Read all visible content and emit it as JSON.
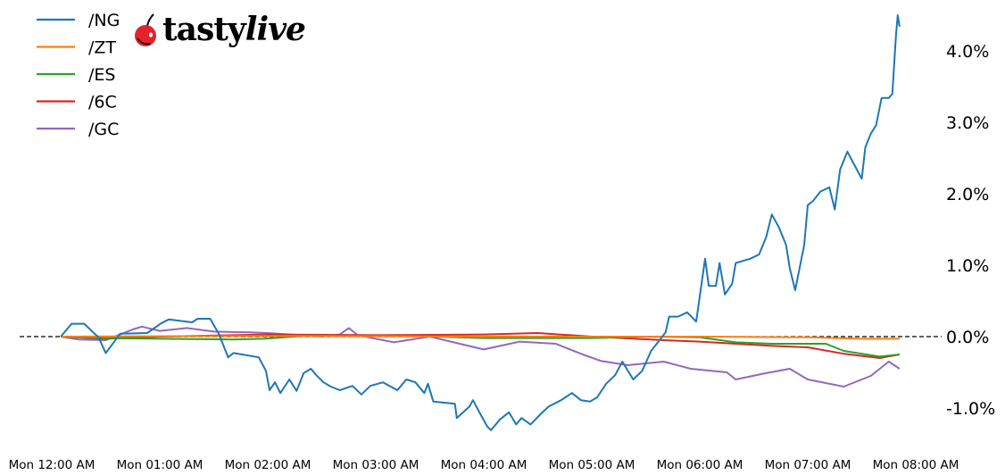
{
  "brand": {
    "logo_text": "tastylive"
  },
  "chart_data": {
    "type": "line",
    "title": "",
    "xlabel": "",
    "ylabel": "",
    "x_unit": "minutes after Mon 12:00 AM",
    "xlim": [
      0,
      480
    ],
    "ylim": [
      -1.5,
      4.6
    ],
    "x_ticks": [
      "Mon 12:00 AM",
      "Mon 01:00 AM",
      "Mon 02:00 AM",
      "Mon 03:00 AM",
      "Mon 04:00 AM",
      "Mon 05:00 AM",
      "Mon 06:00 AM",
      "Mon 07:00 AM",
      "Mon 08:00 AM"
    ],
    "y_ticks": [
      {
        "v": 4,
        "label": "4.0%"
      },
      {
        "v": 3,
        "label": "3.0%"
      },
      {
        "v": 2,
        "label": "2.0%"
      },
      {
        "v": 1,
        "label": "1.0%"
      },
      {
        "v": 0,
        "label": "0.0%"
      },
      {
        "v": -1,
        "label": "-1.0%"
      }
    ],
    "y_axis_side": "right",
    "grid": false,
    "reference_line": {
      "y": 0,
      "style": "dashed",
      "color": "#000000"
    },
    "legend_position": "top-left",
    "series": [
      {
        "name": "/NG",
        "color": "#1f77b4",
        "points": [
          [
            5,
            0
          ],
          [
            11,
            0.18
          ],
          [
            18,
            0.18
          ],
          [
            26,
            -0.01
          ],
          [
            30,
            -0.23
          ],
          [
            38,
            0.04
          ],
          [
            53,
            0.05
          ],
          [
            61,
            0.19
          ],
          [
            65,
            0.24
          ],
          [
            78,
            0.2
          ],
          [
            81,
            0.25
          ],
          [
            88,
            0.25
          ],
          [
            93,
            0.03
          ],
          [
            98,
            -0.29
          ],
          [
            101,
            -0.23
          ],
          [
            115,
            -0.29
          ],
          [
            119,
            -0.48
          ],
          [
            121,
            -0.75
          ],
          [
            124,
            -0.64
          ],
          [
            127,
            -0.79
          ],
          [
            132,
            -0.6
          ],
          [
            136,
            -0.76
          ],
          [
            140,
            -0.51
          ],
          [
            144,
            -0.45
          ],
          [
            147,
            -0.54
          ],
          [
            151,
            -0.64
          ],
          [
            155,
            -0.7
          ],
          [
            160,
            -0.75
          ],
          [
            167,
            -0.69
          ],
          [
            172,
            -0.81
          ],
          [
            177,
            -0.69
          ],
          [
            184,
            -0.64
          ],
          [
            192,
            -0.75
          ],
          [
            197,
            -0.6
          ],
          [
            202,
            -0.64
          ],
          [
            207,
            -0.79
          ],
          [
            209,
            -0.66
          ],
          [
            212,
            -0.91
          ],
          [
            224,
            -0.94
          ],
          [
            225,
            -1.14
          ],
          [
            232,
            -0.98
          ],
          [
            234,
            -0.89
          ],
          [
            238,
            -1.08
          ],
          [
            242,
            -1.26
          ],
          [
            244,
            -1.31
          ],
          [
            249,
            -1.16
          ],
          [
            254,
            -1.06
          ],
          [
            258,
            -1.23
          ],
          [
            261,
            -1.14
          ],
          [
            266,
            -1.23
          ],
          [
            271,
            -1.1
          ],
          [
            276,
            -0.98
          ],
          [
            283,
            -0.89
          ],
          [
            289,
            -0.79
          ],
          [
            294,
            -0.89
          ],
          [
            299,
            -0.91
          ],
          [
            303,
            -0.85
          ],
          [
            308,
            -0.66
          ],
          [
            313,
            -0.54
          ],
          [
            317,
            -0.35
          ],
          [
            323,
            -0.6
          ],
          [
            328,
            -0.48
          ],
          [
            333,
            -0.2
          ],
          [
            338,
            -0.04
          ],
          [
            341,
            0.06
          ],
          [
            343,
            0.28
          ],
          [
            348,
            0.28
          ],
          [
            353,
            0.34
          ],
          [
            358,
            0.21
          ],
          [
            363,
            1.09
          ],
          [
            365,
            0.71
          ],
          [
            369,
            0.71
          ],
          [
            371,
            1.03
          ],
          [
            374,
            0.59
          ],
          [
            378,
            0.74
          ],
          [
            380,
            1.03
          ],
          [
            388,
            1.09
          ],
          [
            393,
            1.15
          ],
          [
            397,
            1.4
          ],
          [
            400,
            1.71
          ],
          [
            404,
            1.53
          ],
          [
            408,
            1.28
          ],
          [
            410,
            0.96
          ],
          [
            413,
            0.65
          ],
          [
            418,
            1.28
          ],
          [
            420,
            1.84
          ],
          [
            423,
            1.9
          ],
          [
            427,
            2.03
          ],
          [
            432,
            2.09
          ],
          [
            435,
            1.78
          ],
          [
            438,
            2.34
          ],
          [
            442,
            2.59
          ],
          [
            446,
            2.4
          ],
          [
            450,
            2.21
          ],
          [
            452,
            2.65
          ],
          [
            455,
            2.84
          ],
          [
            458,
            2.96
          ],
          [
            461,
            3.34
          ],
          [
            465,
            3.34
          ],
          [
            467,
            3.4
          ],
          [
            469,
            4.21
          ],
          [
            470,
            4.5
          ],
          [
            471,
            4.34
          ]
        ]
      },
      {
        "name": "/ZT",
        "color": "#ff7f0e",
        "points": [
          [
            5,
            0
          ],
          [
            120,
            0.01
          ],
          [
            240,
            0
          ],
          [
            360,
            0
          ],
          [
            420,
            -0.01
          ],
          [
            450,
            -0.03
          ],
          [
            471,
            -0.03
          ]
        ]
      },
      {
        "name": "/ES",
        "color": "#2ca02c",
        "points": [
          [
            5,
            0
          ],
          [
            30,
            -0.02
          ],
          [
            60,
            -0.03
          ],
          [
            100,
            -0.04
          ],
          [
            118,
            -0.03
          ],
          [
            140,
            0.01
          ],
          [
            200,
            0.01
          ],
          [
            240,
            -0.02
          ],
          [
            300,
            -0.02
          ],
          [
            330,
            0
          ],
          [
            360,
            -0.01
          ],
          [
            380,
            -0.08
          ],
          [
            400,
            -0.1
          ],
          [
            430,
            -0.1
          ],
          [
            440,
            -0.2
          ],
          [
            460,
            -0.28
          ],
          [
            471,
            -0.25
          ]
        ]
      },
      {
        "name": "/6C",
        "color": "#d62728",
        "points": [
          [
            5,
            0
          ],
          [
            30,
            -0.03
          ],
          [
            60,
            0
          ],
          [
            120,
            0.03
          ],
          [
            180,
            0.02
          ],
          [
            240,
            0.03
          ],
          [
            270,
            0.05
          ],
          [
            300,
            0
          ],
          [
            340,
            -0.05
          ],
          [
            360,
            -0.07
          ],
          [
            400,
            -0.13
          ],
          [
            420,
            -0.15
          ],
          [
            440,
            -0.24
          ],
          [
            460,
            -0.3
          ],
          [
            471,
            -0.25
          ]
        ]
      },
      {
        "name": "/GC",
        "color": "#9467bd",
        "points": [
          [
            5,
            0
          ],
          [
            15,
            -0.04
          ],
          [
            30,
            -0.05
          ],
          [
            45,
            0.1
          ],
          [
            50,
            0.14
          ],
          [
            60,
            0.08
          ],
          [
            75,
            0.12
          ],
          [
            90,
            0.07
          ],
          [
            110,
            0.06
          ],
          [
            120,
            0.05
          ],
          [
            150,
            0
          ],
          [
            160,
            0.03
          ],
          [
            165,
            0.12
          ],
          [
            170,
            0.02
          ],
          [
            190,
            -0.08
          ],
          [
            210,
            0
          ],
          [
            230,
            -0.12
          ],
          [
            240,
            -0.18
          ],
          [
            260,
            -0.07
          ],
          [
            280,
            -0.1
          ],
          [
            295,
            -0.25
          ],
          [
            305,
            -0.34
          ],
          [
            320,
            -0.4
          ],
          [
            340,
            -0.35
          ],
          [
            355,
            -0.45
          ],
          [
            375,
            -0.5
          ],
          [
            380,
            -0.6
          ],
          [
            395,
            -0.52
          ],
          [
            410,
            -0.45
          ],
          [
            420,
            -0.6
          ],
          [
            440,
            -0.7
          ],
          [
            455,
            -0.55
          ],
          [
            465,
            -0.35
          ],
          [
            471,
            -0.45
          ]
        ]
      }
    ]
  }
}
